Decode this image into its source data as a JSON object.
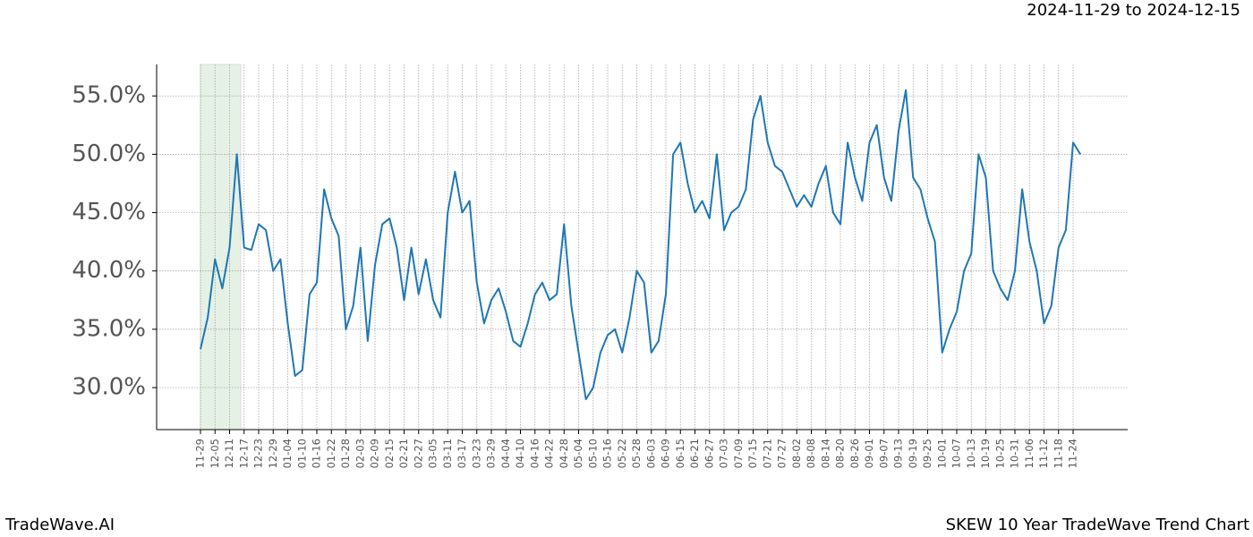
{
  "header": "2024-11-29 to 2024-12-15",
  "footer": {
    "left": "TradeWave.AI",
    "right": "SKEW 10 Year TradeWave Trend Chart"
  },
  "chart_data": {
    "type": "line",
    "categories": [
      "11-29",
      null,
      "12-05",
      null,
      "12-11",
      null,
      "12-17",
      null,
      "12-23",
      null,
      "12-29",
      null,
      "01-04",
      null,
      "01-10",
      null,
      "01-16",
      null,
      "01-22",
      null,
      "01-28",
      null,
      "02-03",
      null,
      "02-09",
      null,
      "02-15",
      null,
      "02-21",
      null,
      "02-27",
      null,
      "03-05",
      null,
      "03-11",
      null,
      "03-17",
      null,
      "03-23",
      null,
      "03-29",
      null,
      "04-04",
      null,
      "04-10",
      null,
      "04-16",
      null,
      "04-22",
      null,
      "04-28",
      null,
      "05-04",
      null,
      "05-10",
      null,
      "05-16",
      null,
      "05-22",
      null,
      "05-28",
      null,
      "06-03",
      null,
      "06-09",
      null,
      "06-15",
      null,
      "06-21",
      null,
      "06-27",
      null,
      "07-03",
      null,
      "07-09",
      null,
      "07-15",
      null,
      "07-21",
      null,
      "07-27",
      null,
      "08-02",
      null,
      "08-08",
      null,
      "08-14",
      null,
      "08-20",
      null,
      "08-26",
      null,
      "09-01",
      null,
      "09-07",
      null,
      "09-13",
      null,
      "09-19",
      null,
      "09-25",
      null,
      "10-01",
      null,
      "10-07",
      null,
      "10-13",
      null,
      "10-19",
      null,
      "10-25",
      null,
      "10-31",
      null,
      "11-06",
      null,
      "11-12",
      null,
      "11-18",
      null,
      "11-24",
      null
    ],
    "series": [
      {
        "name": "SKEW",
        "color": "#1f77b4",
        "values": [
          33.3,
          36.0,
          41.0,
          38.5,
          42.0,
          50.0,
          42.0,
          41.8,
          44.0,
          43.5,
          40.0,
          41.0,
          35.5,
          31.0,
          31.5,
          38.0,
          39.0,
          47.0,
          44.5,
          43.0,
          35.0,
          37.0,
          42.0,
          34.0,
          40.5,
          44.0,
          44.5,
          42.0,
          37.5,
          42.0,
          38.0,
          41.0,
          37.5,
          36.0,
          45.0,
          48.5,
          45.0,
          46.0,
          39.0,
          35.5,
          37.5,
          38.5,
          36.5,
          34.0,
          33.5,
          35.5,
          38.0,
          39.0,
          37.5,
          38.0,
          44.0,
          37.0,
          33.0,
          29.0,
          30.0,
          33.0,
          34.5,
          35.0,
          33.0,
          36.0,
          40.0,
          39.0,
          33.0,
          34.0,
          38.0,
          50.0,
          51.0,
          47.5,
          45.0,
          46.0,
          44.5,
          50.0,
          43.5,
          45.0,
          45.5,
          47.0,
          53.0,
          55.0,
          51.0,
          49.0,
          48.5,
          47.0,
          45.5,
          46.5,
          45.5,
          47.5,
          49.0,
          45.0,
          44.0,
          51.0,
          48.0,
          46.0,
          51.0,
          52.5,
          48.0,
          46.0,
          52.0,
          55.5,
          48.0,
          47.0,
          44.5,
          42.5,
          33.0,
          35.0,
          36.5,
          40.0,
          41.5,
          50.0,
          48.0,
          40.0,
          38.5,
          37.5,
          40.0,
          47.0,
          42.5,
          40.0,
          35.5,
          37.0,
          42.0,
          43.5,
          51.0,
          50.0
        ]
      }
    ],
    "ylim": [
      26.4,
      57.7
    ],
    "yticks": [
      {
        "value": 30,
        "label": "30.0%"
      },
      {
        "value": 35,
        "label": "35.0%"
      },
      {
        "value": 40,
        "label": "40.0%"
      },
      {
        "value": 45,
        "label": "45.0%"
      },
      {
        "value": 50,
        "label": "50.0%"
      },
      {
        "value": 55,
        "label": "55.0%"
      }
    ],
    "grid": true
  }
}
